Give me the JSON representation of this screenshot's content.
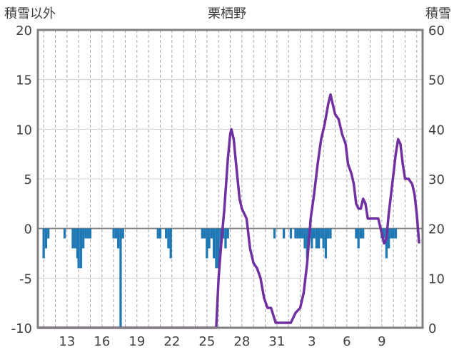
{
  "chart_data": {
    "type": "bar+line",
    "title": "栗栖野",
    "left_axis_label": "積雪以外",
    "right_axis_label": "積雪",
    "ylim_left": [
      -10,
      20
    ],
    "ylim_right": [
      0,
      60
    ],
    "yticks_left": [
      "20",
      "15",
      "10",
      "5",
      "0",
      "-5",
      "-10"
    ],
    "yticks_right": [
      "60",
      "50",
      "40",
      "30",
      "20",
      "10",
      "0"
    ],
    "xticks": [
      "13",
      "16",
      "19",
      "22",
      "25",
      "28",
      "31",
      "3",
      "6",
      "9"
    ],
    "grid": true,
    "bar_color": "#1f77b4",
    "line_color": "#7030a0",
    "series": [
      {
        "name": "積雪以外",
        "type": "bar",
        "axis": "left",
        "values": [
          [
            11.0,
            -3.0
          ],
          [
            11.2,
            -2.0
          ],
          [
            11.4,
            -1.0
          ],
          [
            12.8,
            -1.0
          ],
          [
            13.5,
            -2.0
          ],
          [
            13.7,
            -2.0
          ],
          [
            13.9,
            -3.0
          ],
          [
            14.0,
            -4.0
          ],
          [
            14.2,
            -4.0
          ],
          [
            14.4,
            -2.0
          ],
          [
            14.6,
            -1.0
          ],
          [
            14.8,
            -1.0
          ],
          [
            15.0,
            -1.0
          ],
          [
            17.0,
            -1.0
          ],
          [
            17.2,
            -1.0
          ],
          [
            17.4,
            -2.0
          ],
          [
            17.6,
            -10.0
          ],
          [
            17.8,
            -1.0
          ],
          [
            20.8,
            -1.0
          ],
          [
            21.0,
            -1.0
          ],
          [
            21.5,
            -1.0
          ],
          [
            21.7,
            -2.0
          ],
          [
            21.9,
            -3.0
          ],
          [
            24.6,
            -1.0
          ],
          [
            24.8,
            -1.0
          ],
          [
            25.0,
            -3.0
          ],
          [
            25.2,
            -2.0
          ],
          [
            25.4,
            -1.0
          ],
          [
            25.6,
            -3.0
          ],
          [
            25.8,
            -4.0
          ],
          [
            26.0,
            -4.0
          ],
          [
            26.2,
            -2.0
          ],
          [
            26.4,
            -1.0
          ],
          [
            26.6,
            -2.0
          ],
          [
            26.8,
            -1.0
          ],
          [
            30.8,
            -1.0
          ],
          [
            31.6,
            -1.0
          ],
          [
            32.2,
            -1.0
          ],
          [
            32.6,
            -1.0
          ],
          [
            32.8,
            -1.0
          ],
          [
            33.0,
            -1.0
          ],
          [
            33.2,
            -1.0
          ],
          [
            33.4,
            -2.0
          ],
          [
            33.6,
            -3.0
          ],
          [
            33.8,
            -1.0
          ],
          [
            34.0,
            -2.0
          ],
          [
            34.2,
            -1.0
          ],
          [
            34.4,
            -2.0
          ],
          [
            34.6,
            -2.0
          ],
          [
            34.8,
            -1.0
          ],
          [
            35.0,
            -2.0
          ],
          [
            35.2,
            -3.0
          ],
          [
            35.4,
            -1.0
          ],
          [
            35.6,
            -1.0
          ],
          [
            37.8,
            -1.0
          ],
          [
            38.0,
            -2.0
          ],
          [
            38.2,
            -1.0
          ],
          [
            38.4,
            -1.0
          ],
          [
            40.0,
            -1.0
          ],
          [
            40.2,
            -1.0
          ],
          [
            40.4,
            -3.0
          ],
          [
            40.6,
            -2.0
          ],
          [
            40.8,
            -1.0
          ],
          [
            41.0,
            -1.0
          ],
          [
            41.2,
            -1.0
          ]
        ]
      },
      {
        "name": "積雪",
        "type": "line",
        "axis": "right",
        "values": [
          [
            10.5,
            0
          ],
          [
            25.8,
            0
          ],
          [
            26.0,
            10
          ],
          [
            26.2,
            16
          ],
          [
            26.5,
            24
          ],
          [
            26.8,
            34
          ],
          [
            27.0,
            39
          ],
          [
            27.1,
            40
          ],
          [
            27.3,
            38
          ],
          [
            27.5,
            33
          ],
          [
            27.8,
            26
          ],
          [
            28.0,
            24
          ],
          [
            28.2,
            23
          ],
          [
            28.4,
            22
          ],
          [
            28.7,
            16
          ],
          [
            29.0,
            13
          ],
          [
            29.3,
            12
          ],
          [
            29.6,
            10
          ],
          [
            29.9,
            6
          ],
          [
            30.2,
            4
          ],
          [
            30.5,
            4
          ],
          [
            30.9,
            1
          ],
          [
            31.3,
            1
          ],
          [
            31.8,
            1
          ],
          [
            32.2,
            1
          ],
          [
            32.6,
            3
          ],
          [
            33.0,
            4
          ],
          [
            33.3,
            7
          ],
          [
            33.6,
            13
          ],
          [
            33.9,
            22
          ],
          [
            34.2,
            27
          ],
          [
            34.5,
            33
          ],
          [
            34.8,
            38
          ],
          [
            35.1,
            41
          ],
          [
            35.4,
            45
          ],
          [
            35.6,
            47
          ],
          [
            35.8,
            45
          ],
          [
            36.0,
            43
          ],
          [
            36.3,
            42
          ],
          [
            36.6,
            39
          ],
          [
            36.9,
            37
          ],
          [
            37.1,
            33
          ],
          [
            37.4,
            31
          ],
          [
            37.6,
            29
          ],
          [
            37.8,
            25
          ],
          [
            38.0,
            24
          ],
          [
            38.2,
            24
          ],
          [
            38.4,
            26
          ],
          [
            38.6,
            25
          ],
          [
            38.8,
            22
          ],
          [
            39.1,
            22
          ],
          [
            39.4,
            22
          ],
          [
            39.7,
            22
          ],
          [
            40.0,
            19
          ],
          [
            40.2,
            17
          ],
          [
            40.4,
            18
          ],
          [
            40.6,
            23
          ],
          [
            40.8,
            27
          ],
          [
            41.0,
            31
          ],
          [
            41.2,
            35
          ],
          [
            41.4,
            38
          ],
          [
            41.6,
            37
          ],
          [
            41.8,
            33
          ],
          [
            42.0,
            30
          ],
          [
            42.3,
            30
          ],
          [
            42.6,
            29
          ],
          [
            42.8,
            27
          ],
          [
            43.0,
            23
          ],
          [
            43.2,
            17
          ]
        ]
      }
    ]
  }
}
